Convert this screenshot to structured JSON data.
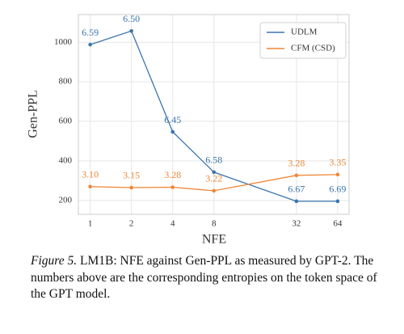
{
  "chart_data": {
    "type": "line",
    "x": [
      1,
      2,
      4,
      8,
      32,
      64
    ],
    "xscale": "log2",
    "xlim": [
      0.82,
      77.5
    ],
    "xticks": [
      1,
      2,
      4,
      8,
      32,
      64
    ],
    "ylim": [
      130,
      1140
    ],
    "yticks": [
      200,
      400,
      600,
      800,
      1000
    ],
    "xlabel": "NFE",
    "ylabel": "Gen-PPL",
    "grid": true,
    "legend": "upper right",
    "series": [
      {
        "name": "UDLM",
        "color": "#3a75ae",
        "values": [
          988,
          1057,
          547,
          343,
          196,
          196
        ],
        "labels": [
          "6.59",
          "6.50",
          "6.45",
          "6.58",
          "6.67",
          "6.69"
        ]
      },
      {
        "name": "CFM (CSD)",
        "color": "#ef8636",
        "values": [
          270,
          265,
          267,
          249,
          327,
          331
        ],
        "labels": [
          "3.10",
          "3.15",
          "3.28",
          "3.22",
          "3.28",
          "3.35"
        ]
      }
    ],
    "caption_label": "Figure 5.",
    "caption": "LM1B: NFE against Gen-PPL as measured by GPT-2. The numbers above are the corresponding entropies on the token space of the GPT model."
  }
}
